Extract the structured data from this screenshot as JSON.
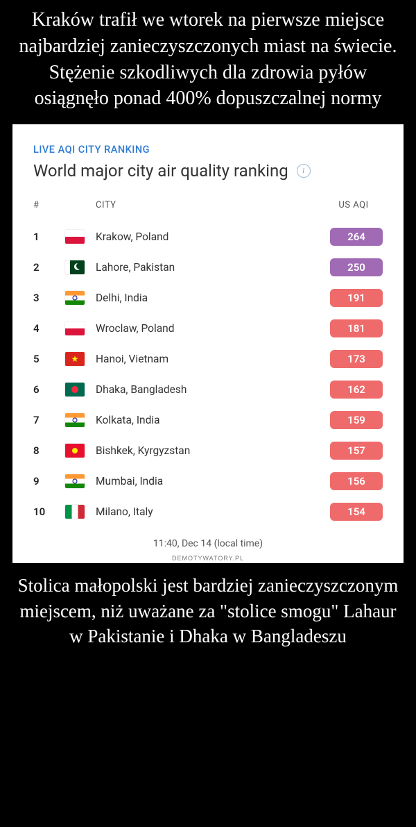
{
  "headline": "Kraków trafił we wtorek na pierwsze miejsce najbardziej zanieczyszczonych miast na świecie. Stężenie szkodliwych dla zdrowia pyłów osiągnęło ponad 400% dopuszczalnej normy",
  "card": {
    "eyebrow": "LIVE AQI CITY RANKING",
    "title": "World major city air quality ranking",
    "header_rank": "#",
    "header_city": "CITY",
    "header_aqi": "US AQI",
    "timestamp": "11:40, Dec 14 (local time)",
    "chip_colors": {
      "purple": "#a06ab4",
      "red": "#ef6b6b"
    },
    "rows": [
      {
        "rank": "1",
        "city": "Krakow, Poland",
        "aqi": "264",
        "level": "purple",
        "flag": "pl"
      },
      {
        "rank": "2",
        "city": "Lahore, Pakistan",
        "aqi": "250",
        "level": "purple",
        "flag": "pk"
      },
      {
        "rank": "3",
        "city": "Delhi, India",
        "aqi": "191",
        "level": "red",
        "flag": "in"
      },
      {
        "rank": "4",
        "city": "Wroclaw, Poland",
        "aqi": "181",
        "level": "red",
        "flag": "pl"
      },
      {
        "rank": "5",
        "city": "Hanoi, Vietnam",
        "aqi": "173",
        "level": "red",
        "flag": "vn"
      },
      {
        "rank": "6",
        "city": "Dhaka, Bangladesh",
        "aqi": "162",
        "level": "red",
        "flag": "bd"
      },
      {
        "rank": "7",
        "city": "Kolkata, India",
        "aqi": "159",
        "level": "red",
        "flag": "in"
      },
      {
        "rank": "8",
        "city": "Bishkek, Kyrgyzstan",
        "aqi": "157",
        "level": "red",
        "flag": "kg"
      },
      {
        "rank": "9",
        "city": "Mumbai, India",
        "aqi": "156",
        "level": "red",
        "flag": "in"
      },
      {
        "rank": "10",
        "city": "Milano, Italy",
        "aqi": "154",
        "level": "red",
        "flag": "it"
      }
    ]
  },
  "watermark": "DEMOTYWATORY.PL",
  "caption": "Stolica małopolski jest bardziej zanieczyszczonym miejscem, niż uważane za \"stolice smogu\" Lahaur w Pakistanie i Dhaka w Bangladeszu"
}
